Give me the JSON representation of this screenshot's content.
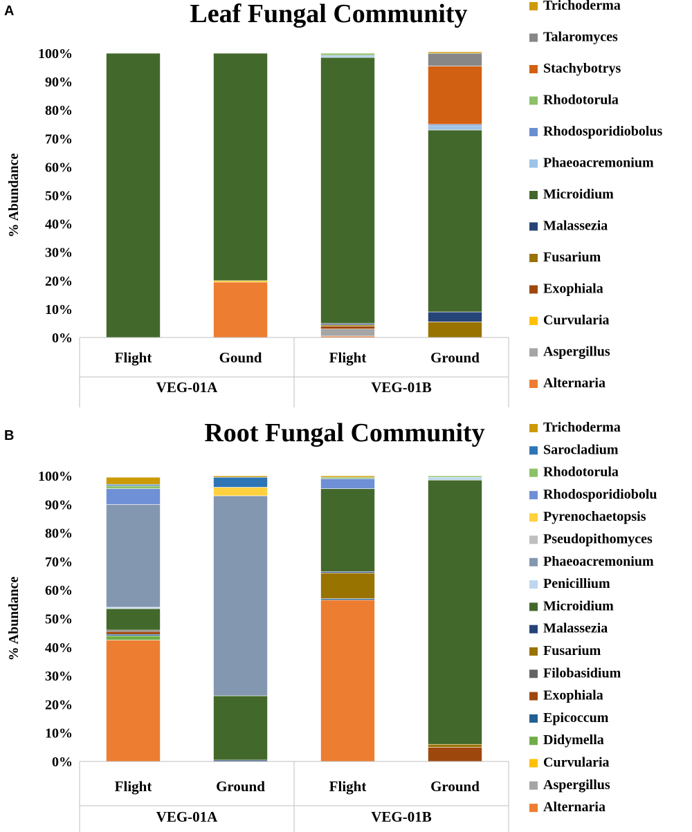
{
  "chart_data": [
    {
      "panel": "A",
      "type": "bar",
      "stacked": true,
      "percent": true,
      "title": "Leaf Fungal Community",
      "ylabel": "% Abundance",
      "ylim": [
        0,
        100
      ],
      "yticks": [
        "0%",
        "10%",
        "20%",
        "30%",
        "40%",
        "50%",
        "60%",
        "70%",
        "80%",
        "90%",
        "100%"
      ],
      "categories": [
        "Flight",
        "Gound",
        "Flight",
        "Ground"
      ],
      "groups": [
        "VEG-01A",
        "VEG-01B"
      ],
      "series": [
        {
          "name": "Alternaria",
          "color": "#ED7D31",
          "values": [
            0,
            19.5,
            0.5,
            0
          ]
        },
        {
          "name": "Aspergillus",
          "color": "#A5A5A5",
          "values": [
            0,
            0,
            2.5,
            0
          ]
        },
        {
          "name": "Curvularia",
          "color": "#FFC000",
          "values": [
            0,
            0.5,
            0,
            0
          ]
        },
        {
          "name": "Exophiala",
          "color": "#9E480E",
          "values": [
            0,
            0,
            1,
            0
          ]
        },
        {
          "name": "Fusarium",
          "color": "#997300",
          "values": [
            0,
            0,
            0.5,
            5.5
          ]
        },
        {
          "name": "Malassezia",
          "color": "#264478",
          "values": [
            0,
            0,
            0.5,
            3.5
          ]
        },
        {
          "name": "Microidium",
          "color": "#43682B",
          "values": [
            100,
            80,
            93.5,
            64
          ]
        },
        {
          "name": "Phaeoacremonium",
          "color": "#9DC3E6",
          "values": [
            0,
            0,
            0.5,
            1.5
          ]
        },
        {
          "name": "Rhodosporidiobolus",
          "color": "#698ED0",
          "values": [
            0,
            0,
            0.3,
            0.5
          ]
        },
        {
          "name": "Rhodotorula",
          "color": "#8CC168",
          "values": [
            0,
            0,
            0.7,
            0
          ]
        },
        {
          "name": "Stachybotrys",
          "color": "#D26012",
          "values": [
            0,
            0,
            0,
            20.5
          ]
        },
        {
          "name": "Talaromyces",
          "color": "#878787",
          "values": [
            0,
            0,
            0,
            4.5
          ]
        },
        {
          "name": "Trichoderma",
          "color": "#CC9A06",
          "values": [
            0,
            0,
            0,
            0.5
          ]
        }
      ]
    },
    {
      "panel": "B",
      "type": "bar",
      "stacked": true,
      "percent": true,
      "title": "Root Fungal Community",
      "ylabel": "% Abundance",
      "ylim": [
        0,
        100
      ],
      "yticks": [
        "0%",
        "10%",
        "20%",
        "30%",
        "40%",
        "50%",
        "60%",
        "70%",
        "80%",
        "90%",
        "100%"
      ],
      "categories": [
        "Flight",
        "Ground",
        "Flight",
        "Ground"
      ],
      "groups": [
        "VEG-01A",
        "VEG-01B"
      ],
      "series": [
        {
          "name": "Alternaria",
          "color": "#ED7D31",
          "values": [
            42.5,
            0,
            56.5,
            0
          ]
        },
        {
          "name": "Aspergillus",
          "color": "#A5A5A5",
          "values": [
            0,
            0,
            0,
            0
          ]
        },
        {
          "name": "Curvularia",
          "color": "#FFC000",
          "values": [
            0,
            0,
            0,
            0
          ]
        },
        {
          "name": "Didymella",
          "color": "#70AD47",
          "values": [
            1.5,
            0,
            0,
            0
          ]
        },
        {
          "name": "Epicoccum",
          "color": "#255E91",
          "values": [
            0.5,
            0,
            0.5,
            0
          ]
        },
        {
          "name": "Exophiala",
          "color": "#9E480E",
          "values": [
            1,
            0,
            0,
            5
          ]
        },
        {
          "name": "Filobasidium",
          "color": "#636363",
          "values": [
            0.5,
            0,
            0,
            0
          ]
        },
        {
          "name": "Fusarium",
          "color": "#997300",
          "values": [
            0,
            0,
            9,
            1
          ]
        },
        {
          "name": "Malassezia",
          "color": "#264478",
          "values": [
            0,
            0.5,
            0.5,
            0
          ]
        },
        {
          "name": "Microidium",
          "color": "#43682B",
          "values": [
            7.5,
            22.5,
            29,
            92.5
          ]
        },
        {
          "name": "Penicillium",
          "color": "#BDD7EE",
          "values": [
            0.5,
            0,
            0,
            1
          ]
        },
        {
          "name": "Phaeoacremonium",
          "color": "#8497B0",
          "values": [
            36,
            70,
            0,
            0
          ]
        },
        {
          "name": "Pseudopithomyces",
          "color": "#BFBFBF",
          "values": [
            0,
            0,
            0,
            0
          ]
        },
        {
          "name": "Pyrenochaetopsis",
          "color": "#FFD13F",
          "values": [
            0,
            3,
            0,
            0
          ]
        },
        {
          "name": "Rhodosporidiobolu",
          "color": "#6F8FD6",
          "values": [
            5.5,
            0,
            3.5,
            0
          ]
        },
        {
          "name": "Rhodotorula",
          "color": "#8CC168",
          "values": [
            1,
            0,
            0.5,
            0.5
          ]
        },
        {
          "name": "Sarocladium",
          "color": "#2E75B6",
          "values": [
            0.5,
            3.5,
            0,
            0
          ]
        },
        {
          "name": "Trichoderma",
          "color": "#CC9A06",
          "values": [
            2.5,
            0.5,
            0.5,
            0
          ]
        }
      ]
    }
  ]
}
